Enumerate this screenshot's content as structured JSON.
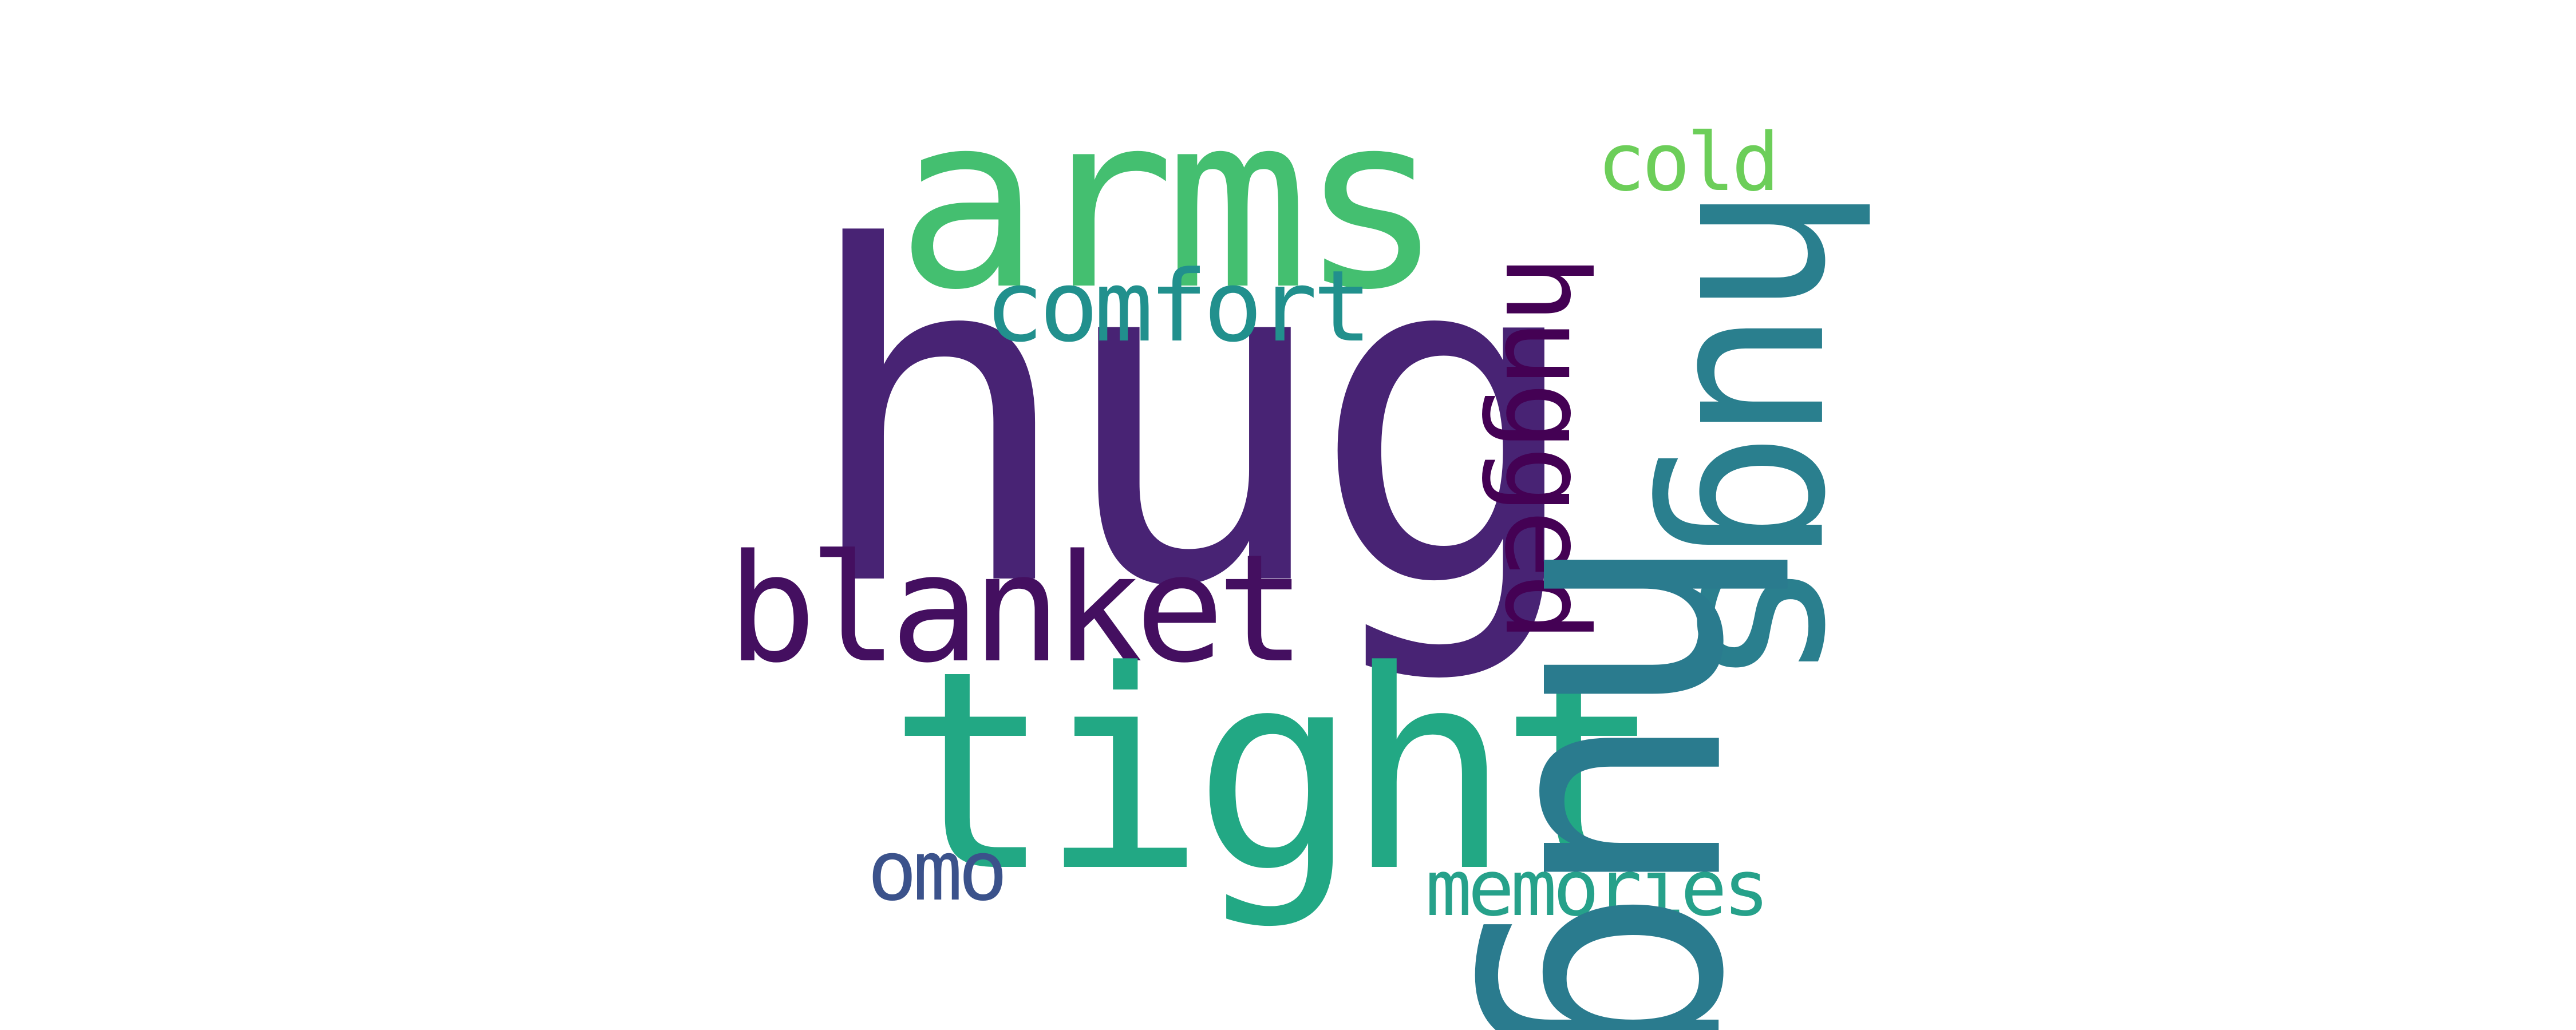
{
  "words": {
    "hug": {
      "text": "hug",
      "color": "#482374"
    },
    "arms": {
      "text": "arms",
      "color": "#44BF70"
    },
    "comfort": {
      "text": "comfort",
      "color": "#21908D"
    },
    "hugged": {
      "text": "hugged",
      "color": "#440154"
    },
    "hugs": {
      "text": "hugs",
      "color": "#2A7F8E"
    },
    "hug_n": {
      "text": "hug",
      "color": "#2A7B8E"
    },
    "blanket": {
      "text": "blanket",
      "color": "#440F60"
    },
    "tight": {
      "text": "tight",
      "color": "#22A884"
    },
    "omo": {
      "text": "omo",
      "color": "#3B528B"
    },
    "memories": {
      "text": "memories",
      "color": "#26A18A"
    },
    "cold": {
      "text": "cold",
      "color": "#6CCE59"
    }
  }
}
